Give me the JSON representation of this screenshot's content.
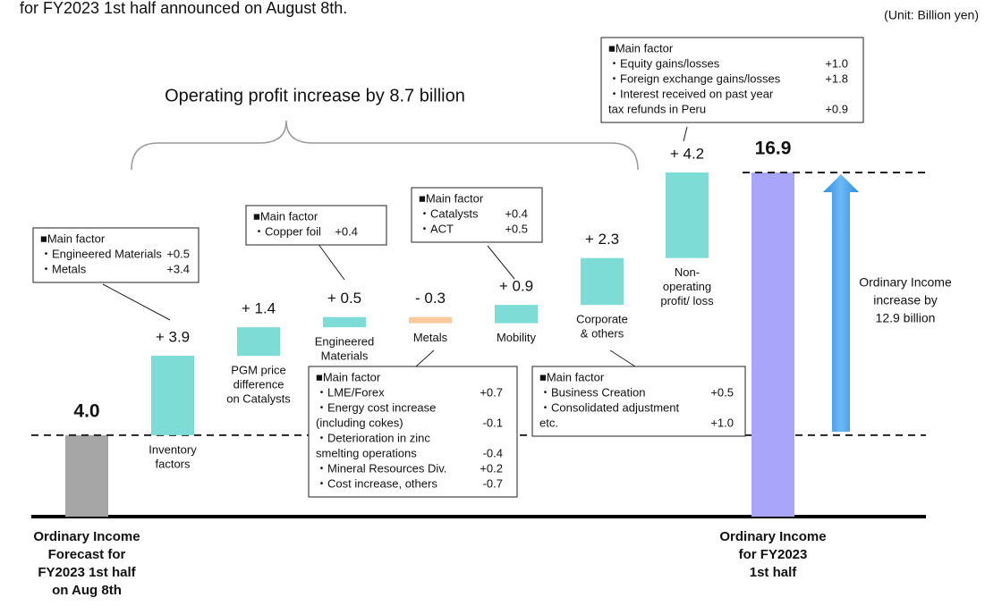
{
  "chart_data": {
    "type": "waterfall",
    "title": "for FY2023 1st half announced on August 8th.",
    "unit": "(Unit: Billion yen)",
    "categories": [
      [
        "Ordinary Income",
        "Forecast for",
        "FY2023 1st half",
        "on Aug 8th"
      ],
      [
        "Inventory",
        "factors"
      ],
      [
        "PGM price",
        "difference",
        "on Catalysts"
      ],
      [
        "Engineered",
        "Materials"
      ],
      [
        "Metals"
      ],
      [
        "Mobility"
      ],
      [
        "Corporate",
        "& others"
      ],
      [
        "Non-",
        "operating",
        "profit/ loss"
      ],
      [
        "Ordinary Income",
        "for FY2023",
        "1st half"
      ]
    ],
    "values": [
      4.0,
      3.9,
      1.4,
      0.5,
      -0.3,
      0.9,
      2.3,
      4.2,
      16.9
    ],
    "value_labels": [
      "4.0",
      "+ 3.9",
      "+ 1.4",
      "+ 0.5",
      "- 0.3",
      "+ 0.9",
      "+ 2.3",
      "+ 4.2",
      "16.9"
    ],
    "colors": [
      "#a6a6a6",
      "#7edcd6",
      "#7edcd6",
      "#7edcd6",
      "#f9c99c",
      "#7edcd6",
      "#7edcd6",
      "#7edcd6",
      "#a9a5fa"
    ],
    "brace_label": "Operating profit increase by 8.7 billion",
    "arrow_label": [
      "Ordinary Income",
      "increase by",
      "12.9 billion"
    ],
    "annotations": [
      {
        "title": "■Main factor",
        "items": [
          {
            "label": [
              "・Engineered Materials"
            ],
            "value": "+0.5"
          },
          {
            "label": [
              "・Metals"
            ],
            "value": "+3.4"
          }
        ]
      },
      {
        "title": "■Main factor",
        "items": [
          {
            "label": [
              "・Copper foil"
            ],
            "value": "+0.4"
          }
        ]
      },
      {
        "title": "■Main factor",
        "items": [
          {
            "label": [
              "・Catalysts"
            ],
            "value": "+0.4"
          },
          {
            "label": [
              "・ACT"
            ],
            "value": "+0.5"
          }
        ]
      },
      {
        "title": "■Main factor",
        "items": [
          {
            "label": [
              "・Equity gains/losses"
            ],
            "value": "+1.0"
          },
          {
            "label": [
              "・Foreign exchange gains/losses"
            ],
            "value": "+1.8"
          },
          {
            "label": [
              "・Interest received on past year",
              "  tax refunds in Peru"
            ],
            "value": "+0.9"
          }
        ]
      },
      {
        "title": "■Main factor",
        "items": [
          {
            "label": [
              "・LME/Forex"
            ],
            "value": "+0.7"
          },
          {
            "label": [
              "・Energy cost increase",
              "  (including cokes)"
            ],
            "value": "-0.1"
          },
          {
            "label": [
              "・Deterioration in zinc",
              "  smelting operations"
            ],
            "value": "-0.4"
          },
          {
            "label": [
              "・Mineral Resources Div."
            ],
            "value": "+0.2"
          },
          {
            "label": [
              "・Cost increase, others"
            ],
            "value": "-0.7"
          }
        ]
      },
      {
        "title": "■Main factor",
        "items": [
          {
            "label": [
              "・Business Creation"
            ],
            "value": "+0.5"
          },
          {
            "label": [
              "・Consolidated adjustment",
              "  etc."
            ],
            "value": "+1.0"
          }
        ]
      }
    ]
  }
}
